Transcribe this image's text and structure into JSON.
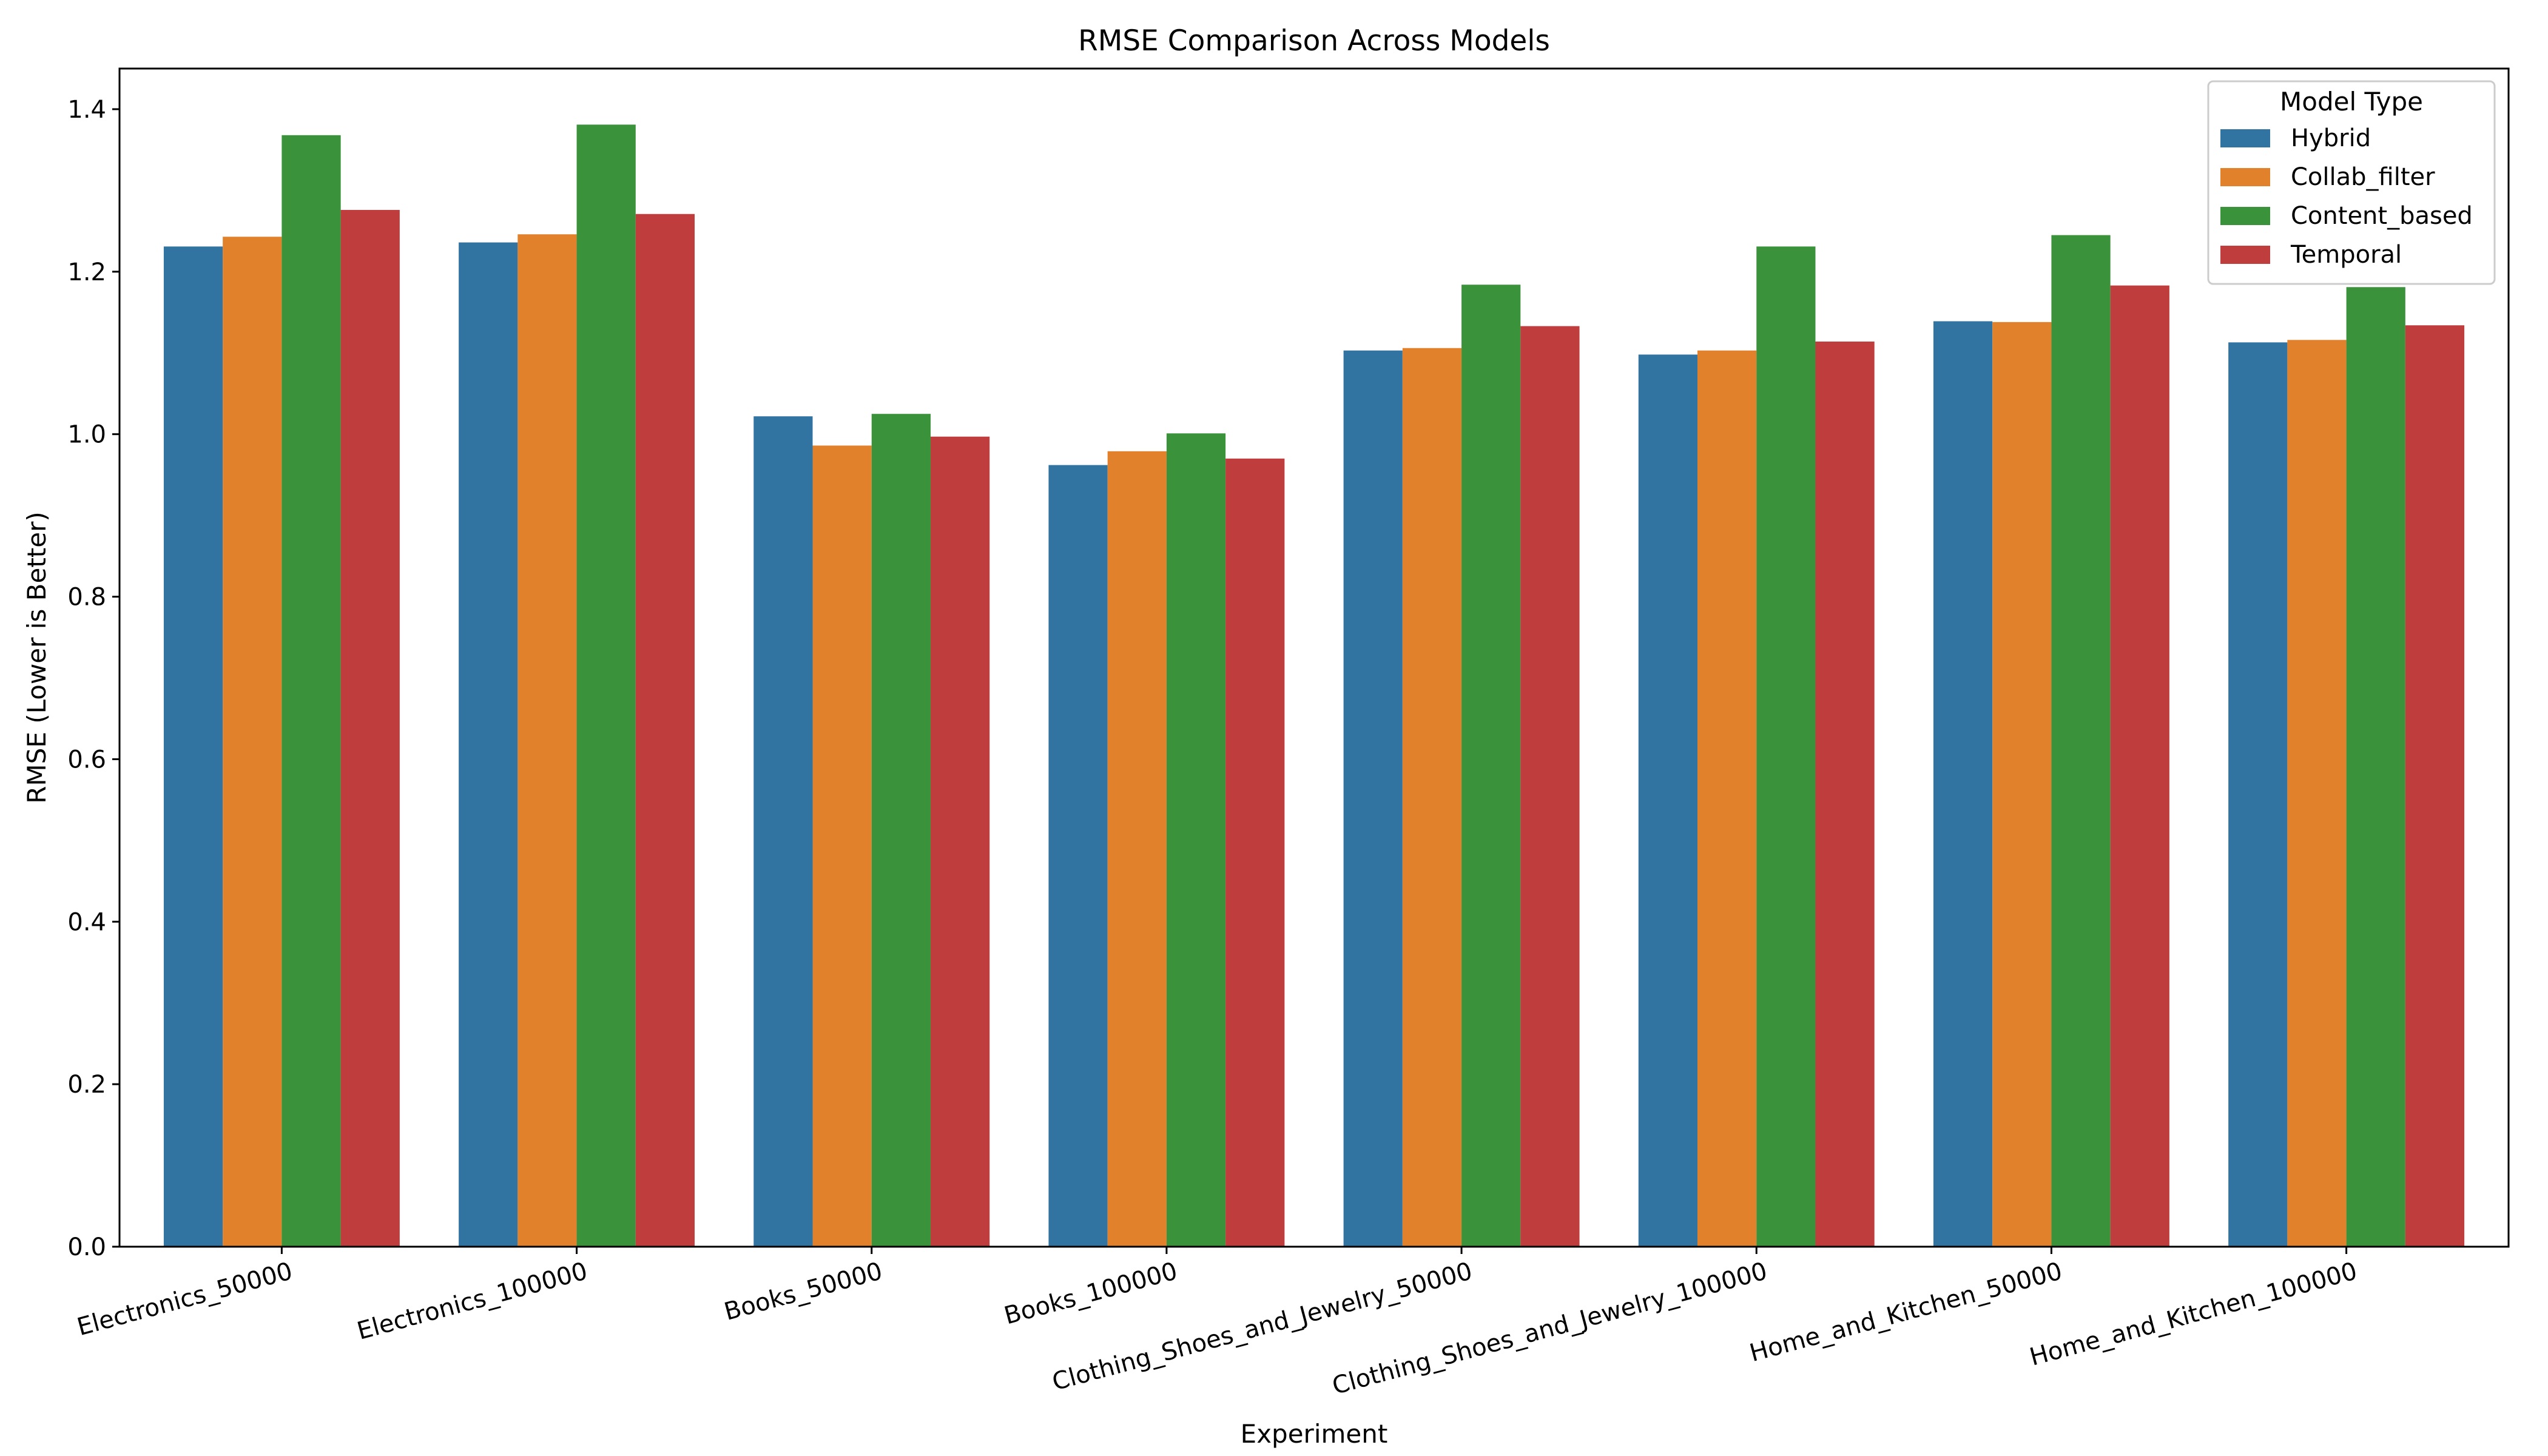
{
  "chart_data": {
    "type": "bar",
    "title": "RMSE Comparison Across Models",
    "xlabel": "Experiment",
    "ylabel": "RMSE (Lower is Better)",
    "ylim": [
      0,
      1.45
    ],
    "yticks": [
      0.0,
      0.2,
      0.4,
      0.6,
      0.8,
      1.0,
      1.2,
      1.4
    ],
    "ytick_labels": [
      "0.0",
      "0.2",
      "0.4",
      "0.6",
      "0.8",
      "1.0",
      "1.2",
      "1.4"
    ],
    "grid": false,
    "categories": [
      "Electronics_50000",
      "Electronics_100000",
      "Books_50000",
      "Books_100000",
      "Clothing_Shoes_and_Jewelry_50000",
      "Clothing_Shoes_and_Jewelry_100000",
      "Home_and_Kitchen_50000",
      "Home_and_Kitchen_100000"
    ],
    "legend": {
      "title": "Model Type",
      "placement": "top-right"
    },
    "series": [
      {
        "name": "Hybrid",
        "color": "#3274a1",
        "values": [
          1.231,
          1.236,
          1.022,
          0.962,
          1.103,
          1.098,
          1.139,
          1.113
        ]
      },
      {
        "name": "Collab_filter",
        "color": "#e1812c",
        "values": [
          1.243,
          1.246,
          0.986,
          0.979,
          1.106,
          1.103,
          1.138,
          1.116
        ]
      },
      {
        "name": "Content_based",
        "color": "#3a923a",
        "values": [
          1.368,
          1.381,
          1.025,
          1.001,
          1.184,
          1.231,
          1.245,
          1.181
        ]
      },
      {
        "name": "Temporal",
        "color": "#c03d3e",
        "values": [
          1.276,
          1.271,
          0.997,
          0.97,
          1.133,
          1.114,
          1.183,
          1.134
        ]
      }
    ]
  }
}
